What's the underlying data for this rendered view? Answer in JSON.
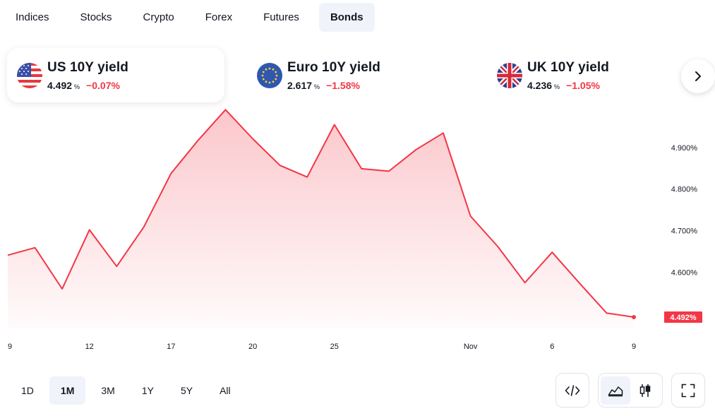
{
  "tabs": [
    {
      "label": "Indices"
    },
    {
      "label": "Stocks"
    },
    {
      "label": "Crypto"
    },
    {
      "label": "Forex"
    },
    {
      "label": "Futures"
    },
    {
      "label": "Bonds",
      "active": true
    }
  ],
  "cards": [
    {
      "name": "US 10Y yield",
      "value": "4.492",
      "unit": "%",
      "change": "−0.07%",
      "flag": "us-flag-icon",
      "active": true
    },
    {
      "name": "Euro 10Y yield",
      "value": "2.617",
      "unit": "%",
      "change": "−1.58%",
      "flag": "eu-flag-icon"
    },
    {
      "name": "UK 10Y yield",
      "value": "4.236",
      "unit": "%",
      "change": "−1.05%",
      "flag": "uk-flag-icon"
    }
  ],
  "colors": {
    "line": "#f23645",
    "accent_bg": "#f0f3fa",
    "text": "#131722"
  },
  "chart_data": {
    "type": "area",
    "series": [
      {
        "values": [
          4.641,
          4.659,
          4.56,
          4.702,
          4.614,
          4.709,
          4.838,
          4.918,
          4.991,
          4.921,
          4.857,
          4.829,
          4.955,
          4.849,
          4.843,
          4.895,
          4.935,
          4.735,
          4.662,
          4.575,
          4.648,
          4.574,
          4.502,
          4.492
        ]
      }
    ],
    "x_index": [
      0,
      1,
      2,
      3,
      4,
      5,
      6,
      7,
      8,
      9,
      10,
      11,
      12,
      13,
      14,
      15,
      16,
      17,
      18,
      19,
      20,
      21,
      22,
      23
    ],
    "x_ticks": [
      {
        "index": 0,
        "label": "9"
      },
      {
        "index": 3,
        "label": "12"
      },
      {
        "index": 6,
        "label": "17"
      },
      {
        "index": 9,
        "label": "20"
      },
      {
        "index": 12,
        "label": "25"
      },
      {
        "index": 17,
        "label": "Nov"
      },
      {
        "index": 20,
        "label": "6"
      },
      {
        "index": 23,
        "label": "9"
      }
    ],
    "y_ticks": [
      "4.600%",
      "4.700%",
      "4.800%",
      "4.900%"
    ],
    "y_tick_values": [
      4.6,
      4.7,
      4.8,
      4.9
    ],
    "last_value_label": "4.492%",
    "ylim": [
      4.47,
      5.0
    ]
  },
  "ranges": [
    {
      "label": "1D"
    },
    {
      "label": "1M",
      "active": true
    },
    {
      "label": "3M"
    },
    {
      "label": "1Y"
    },
    {
      "label": "5Y"
    },
    {
      "label": "All"
    }
  ],
  "tools": {
    "embed": "code-icon",
    "area": "area-chart-icon",
    "candles": "candlestick-icon",
    "fullscreen": "fullscreen-icon"
  }
}
